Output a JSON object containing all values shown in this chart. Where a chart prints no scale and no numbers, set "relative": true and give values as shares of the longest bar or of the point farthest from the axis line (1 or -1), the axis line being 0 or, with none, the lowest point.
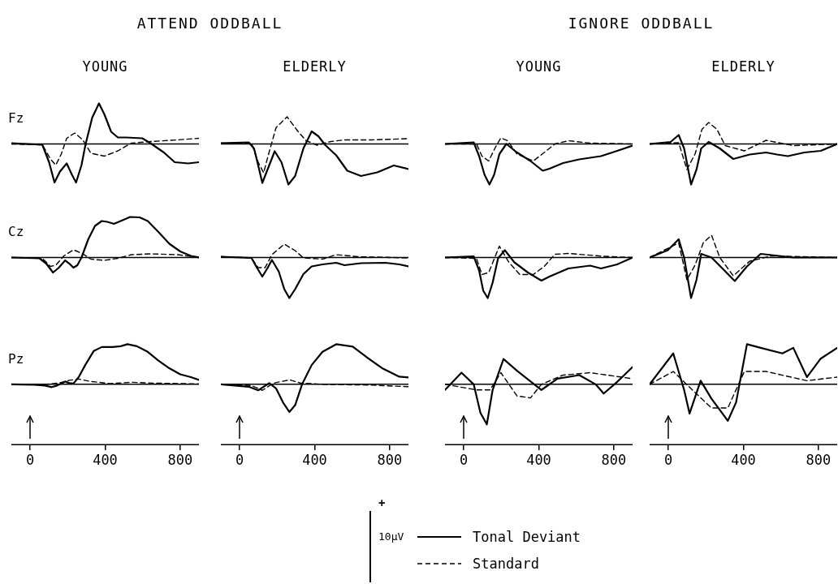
{
  "chart_data": [
    {
      "type": "line",
      "title": "YOUNG",
      "ylabel": "Fz",
      "annotations": [
        "ATTEND ODDBALL",
        "+",
        "10µV"
      ],
      "legend": "bottom",
      "relative": true,
      "xlim": [
        -100,
        900
      ],
      "tick_labels": false,
      "series": [
        {
          "name": "Tonal Deviant",
          "color": "#000000",
          "line_style": "solid",
          "x": [
            -100,
            65,
            101,
            130,
            159,
            195,
            223,
            245,
            274,
            295,
            331,
            367,
            396,
            432,
            468,
            512,
            598,
            641,
            713,
            771,
            843,
            900
          ],
          "values": [
            0.02,
            -0.02,
            -0.45,
            -0.95,
            -0.68,
            -0.48,
            -0.76,
            -0.95,
            -0.52,
            -0.02,
            0.65,
            1,
            0.73,
            0.3,
            0.16,
            0.16,
            0.14,
            0.02,
            -0.21,
            -0.45,
            -0.48,
            -0.45
          ]
        },
        {
          "name": "Standard",
          "color": "#000000",
          "line_style": "dashed",
          "x": [
            -100,
            65,
            108,
            137,
            166,
            195,
            238,
            281,
            324,
            396,
            468,
            540,
            641,
            785,
            900
          ],
          "values": [
            0,
            -0.02,
            -0.37,
            -0.52,
            -0.25,
            0.14,
            0.27,
            0.1,
            -0.23,
            -0.3,
            -0.17,
            0.02,
            0.06,
            0.1,
            0.14
          ]
        }
      ]
    },
    {
      "type": "line",
      "title": "ELDERLY",
      "relative": true,
      "xlim": [
        -100,
        900
      ],
      "tick_labels": false,
      "series": [
        {
          "color": "#000000",
          "line_style": "solid",
          "x": [
            -100,
            48,
            77,
            99,
            121,
            143,
            187,
            223,
            260,
            296,
            340,
            384,
            420,
            457,
            515,
            574,
            647,
            734,
            822,
            900
          ],
          "values": [
            0.02,
            0.04,
            -0.11,
            -0.53,
            -0.96,
            -0.7,
            -0.18,
            -0.45,
            -1,
            -0.79,
            -0.11,
            0.31,
            0.19,
            -0.03,
            -0.28,
            -0.66,
            -0.79,
            -0.7,
            -0.53,
            -0.62
          ]
        },
        {
          "color": "#000000",
          "line_style": "dashed",
          "x": [
            -100,
            63,
            99,
            128,
            158,
            194,
            253,
            311,
            355,
            413,
            486,
            559,
            705,
            900
          ],
          "values": [
            0.02,
            0.02,
            -0.45,
            -0.71,
            -0.19,
            0.4,
            0.67,
            0.31,
            0.08,
            -0.03,
            0.06,
            0.1,
            0.1,
            0.13
          ]
        }
      ]
    },
    {
      "type": "line",
      "title": "YOUNG",
      "annotations": [
        "IGNORE ODDBALL"
      ],
      "relative": true,
      "xlim": [
        -100,
        900
      ],
      "tick_labels": false,
      "series": [
        {
          "color": "#000000",
          "line_style": "solid",
          "x": [
            -100,
            53,
            82,
            111,
            137,
            162,
            190,
            227,
            284,
            356,
            421,
            457,
            530,
            616,
            732,
            818,
            900
          ],
          "values": [
            0,
            0.04,
            -0.3,
            -0.76,
            -1,
            -0.76,
            -0.25,
            0,
            -0.21,
            -0.42,
            -0.66,
            -0.61,
            -0.47,
            -0.38,
            -0.3,
            -0.17,
            -0.04
          ]
        },
        {
          "color": "#000000",
          "line_style": "dashed",
          "x": [
            -100,
            68,
            97,
            133,
            169,
            198,
            234,
            284,
            371,
            429,
            486,
            558,
            674,
            900
          ],
          "values": [
            0,
            0,
            -0.3,
            -0.42,
            -0.08,
            0.15,
            0.08,
            -0.25,
            -0.42,
            -0.21,
            0,
            0.08,
            0.02,
            0
          ]
        }
      ]
    },
    {
      "type": "line",
      "title": "ELDERLY",
      "relative": true,
      "xlim": [
        -100,
        900
      ],
      "tick_labels": false,
      "series": [
        {
          "color": "#000000",
          "line_style": "solid",
          "x": [
            -100,
            12,
            55,
            84,
            121,
            150,
            175,
            215,
            274,
            346,
            434,
            521,
            579,
            637,
            725,
            812,
            900
          ],
          "values": [
            0,
            0.05,
            0.22,
            -0.11,
            -1,
            -0.63,
            -0.11,
            0.05,
            -0.11,
            -0.37,
            -0.26,
            -0.21,
            -0.26,
            -0.3,
            -0.21,
            -0.17,
            0
          ]
        },
        {
          "color": "#000000",
          "line_style": "dashed",
          "x": [
            -100,
            55,
            99,
            143,
            179,
            215,
            259,
            303,
            405,
            521,
            666,
            900
          ],
          "values": [
            0,
            0.03,
            -0.63,
            -0.24,
            0.36,
            0.53,
            0.36,
            -0.04,
            -0.17,
            0.09,
            -0.04,
            0
          ]
        }
      ]
    },
    {
      "type": "line",
      "ylabel": "Cz",
      "relative": true,
      "xlim": [
        -100,
        900
      ],
      "tick_labels": false,
      "series": [
        {
          "color": "#000000",
          "line_style": "solid",
          "x": [
            -100,
            50,
            86,
            122,
            151,
            187,
            209,
            231,
            252,
            274,
            310,
            346,
            382,
            411,
            447,
            483,
            533,
            584,
            627,
            684,
            742,
            800,
            857,
            900
          ],
          "values": [
            0,
            -0.02,
            -0.15,
            -0.37,
            -0.26,
            -0.07,
            -0.15,
            -0.25,
            -0.19,
            0,
            0.45,
            0.78,
            0.9,
            0.88,
            0.83,
            0.9,
            1,
            0.99,
            0.9,
            0.63,
            0.34,
            0.15,
            0.04,
            0
          ]
        },
        {
          "color": "#000000",
          "line_style": "dashed",
          "x": [
            -100,
            65,
            108,
            137,
            180,
            231,
            281,
            324,
            396,
            468,
            540,
            641,
            785,
            900
          ],
          "values": [
            0,
            -0.02,
            -0.22,
            -0.19,
            0.04,
            0.19,
            0.09,
            -0.04,
            -0.07,
            -0.02,
            0.07,
            0.09,
            0.07,
            0
          ]
        }
      ]
    },
    {
      "type": "line",
      "relative": true,
      "xlim": [
        -100,
        900
      ],
      "tick_labels": false,
      "series": [
        {
          "color": "#000000",
          "line_style": "solid",
          "x": [
            -100,
            63,
            92,
            121,
            150,
            172,
            209,
            238,
            265,
            296,
            340,
            384,
            442,
            515,
            559,
            647,
            778,
            851,
            900
          ],
          "values": [
            0.02,
            -0.01,
            -0.25,
            -0.47,
            -0.25,
            -0.06,
            -0.35,
            -0.78,
            -1,
            -0.78,
            -0.41,
            -0.22,
            -0.17,
            -0.13,
            -0.19,
            -0.14,
            -0.13,
            -0.17,
            -0.22
          ]
        },
        {
          "color": "#000000",
          "line_style": "dashed",
          "x": [
            -100,
            63,
            99,
            136,
            172,
            238,
            296,
            340,
            442,
            515,
            632,
            900
          ],
          "values": [
            0.02,
            -0.01,
            -0.25,
            -0.25,
            0.07,
            0.33,
            0.17,
            -0.01,
            -0.04,
            0.07,
            0.02,
            -0.01
          ]
        }
      ]
    },
    {
      "type": "line",
      "relative": true,
      "xlim": [
        -100,
        900
      ],
      "tick_labels": false,
      "series": [
        {
          "color": "#000000",
          "line_style": "solid",
          "x": [
            -100,
            53,
            82,
            104,
            128,
            154,
            183,
            219,
            270,
            342,
            414,
            457,
            558,
            674,
            732,
            818,
            900
          ],
          "values": [
            0,
            0.03,
            -0.32,
            -0.82,
            -1,
            -0.62,
            -0.02,
            0.18,
            -0.12,
            -0.37,
            -0.57,
            -0.47,
            -0.27,
            -0.2,
            -0.27,
            -0.17,
            0
          ]
        },
        {
          "color": "#000000",
          "line_style": "dashed",
          "x": [
            -100,
            68,
            97,
            133,
            190,
            241,
            299,
            371,
            429,
            486,
            558,
            746,
            900
          ],
          "values": [
            0,
            -0.02,
            -0.42,
            -0.37,
            0.28,
            -0.12,
            -0.42,
            -0.42,
            -0.22,
            0.08,
            0.1,
            0.03,
            0
          ]
        }
      ]
    },
    {
      "type": "line",
      "relative": true,
      "xlim": [
        -100,
        900
      ],
      "tick_labels": false,
      "series": [
        {
          "color": "#000000",
          "line_style": "solid",
          "x": [
            -100,
            -3,
            55,
            84,
            121,
            150,
            175,
            230,
            288,
            354,
            419,
            492,
            666,
            900
          ],
          "values": [
            0,
            0.18,
            0.45,
            0,
            -1,
            -0.55,
            0.09,
            0,
            -0.27,
            -0.58,
            -0.22,
            0.09,
            0,
            0
          ]
        },
        {
          "color": "#000000",
          "line_style": "dashed",
          "x": [
            -100,
            55,
            99,
            143,
            186,
            230,
            274,
            346,
            434,
            550,
            900
          ],
          "values": [
            0,
            0.36,
            -0.55,
            -0.18,
            0.36,
            0.55,
            0,
            -0.45,
            -0.09,
            0.04,
            0
          ]
        }
      ]
    },
    {
      "type": "line",
      "ylabel": "Pz",
      "relative": true,
      "xlim": [
        -100,
        900
      ],
      "xticks": [
        0,
        400,
        800
      ],
      "tick_labels": "x",
      "series": [
        {
          "color": "#000000",
          "line_style": "solid",
          "x": [
            -100,
            22,
            79,
            115,
            144,
            187,
            209,
            231,
            259,
            295,
            339,
            382,
            440,
            483,
            519,
            569,
            627,
            684,
            742,
            800,
            857,
            900
          ],
          "values": [
            0,
            -0.01,
            -0.03,
            -0.07,
            -0.03,
            0.07,
            0.03,
            0.02,
            0.18,
            0.49,
            0.83,
            0.93,
            0.93,
            0.95,
            1,
            0.95,
            0.81,
            0.59,
            0.4,
            0.25,
            0.18,
            0.11
          ]
        },
        {
          "color": "#000000",
          "line_style": "dashed",
          "x": [
            -100,
            65,
            151,
            209,
            259,
            324,
            425,
            540,
            656,
            785,
            900
          ],
          "values": [
            0,
            -0.01,
            0.03,
            0.1,
            0.13,
            0.07,
            0.02,
            0.05,
            0.03,
            0.02,
            0.01
          ]
        }
      ]
    },
    {
      "type": "line",
      "relative": true,
      "xlim": [
        -100,
        900
      ],
      "xticks": [
        0,
        400,
        800
      ],
      "tick_labels": "x",
      "series": [
        {
          "color": "#000000",
          "line_style": "solid",
          "x": [
            -100,
            48,
            99,
            158,
            194,
            231,
            265,
            296,
            333,
            384,
            442,
            515,
            603,
            676,
            764,
            851,
            900
          ],
          "values": [
            0,
            -0.06,
            -0.15,
            0.03,
            -0.1,
            -0.45,
            -0.69,
            -0.52,
            0,
            0.48,
            0.81,
            1,
            0.94,
            0.68,
            0.39,
            0.19,
            0.17
          ]
        },
        {
          "color": "#000000",
          "line_style": "dashed",
          "x": [
            -100,
            63,
            121,
            180,
            267,
            326,
            442,
            705,
            900
          ],
          "values": [
            0,
            -0.03,
            -0.15,
            0.03,
            0.11,
            0.03,
            0,
            -0.02,
            -0.06
          ]
        }
      ]
    },
    {
      "type": "line",
      "relative": true,
      "xlim": [
        -100,
        900
      ],
      "xticks": [
        0,
        400,
        800
      ],
      "tick_labels": "x",
      "series": [
        {
          "color": "#000000",
          "line_style": "solid",
          "x": [
            -100,
            -12,
            53,
            89,
            123,
            154,
            212,
            284,
            414,
            500,
            616,
            703,
            746,
            818,
            900
          ],
          "values": [
            -0.14,
            0.29,
            0,
            -0.71,
            -1,
            -0.14,
            0.63,
            0.34,
            -0.14,
            0.14,
            0.23,
            0,
            -0.23,
            0.06,
            0.43
          ]
        },
        {
          "color": "#000000",
          "line_style": "dashed",
          "x": [
            -100,
            68,
            140,
            198,
            284,
            356,
            414,
            530,
            674,
            900
          ],
          "values": [
            0,
            -0.14,
            -0.14,
            0.29,
            -0.29,
            -0.34,
            0,
            0.23,
            0.29,
            0.14
          ]
        }
      ]
    },
    {
      "type": "line",
      "relative": true,
      "xlim": [
        -100,
        900
      ],
      "xticks": [
        0,
        400,
        800
      ],
      "tick_labels": "x",
      "series": [
        {
          "color": "#000000",
          "line_style": "solid",
          "x": [
            -100,
            26,
            84,
            113,
            172,
            230,
            317,
            361,
            419,
            492,
            608,
            666,
            739,
            812,
            900
          ],
          "values": [
            0,
            0.77,
            -0.14,
            -0.73,
            0.09,
            -0.36,
            -0.91,
            -0.45,
            1,
            0.91,
            0.77,
            0.91,
            0.18,
            0.64,
            0.91
          ]
        },
        {
          "color": "#000000",
          "line_style": "dashed",
          "x": [
            -100,
            26,
            128,
            230,
            317,
            405,
            521,
            739,
            900
          ],
          "values": [
            0,
            0.32,
            -0.14,
            -0.59,
            -0.59,
            0.32,
            0.32,
            0.09,
            0.18
          ]
        }
      ]
    }
  ]
}
